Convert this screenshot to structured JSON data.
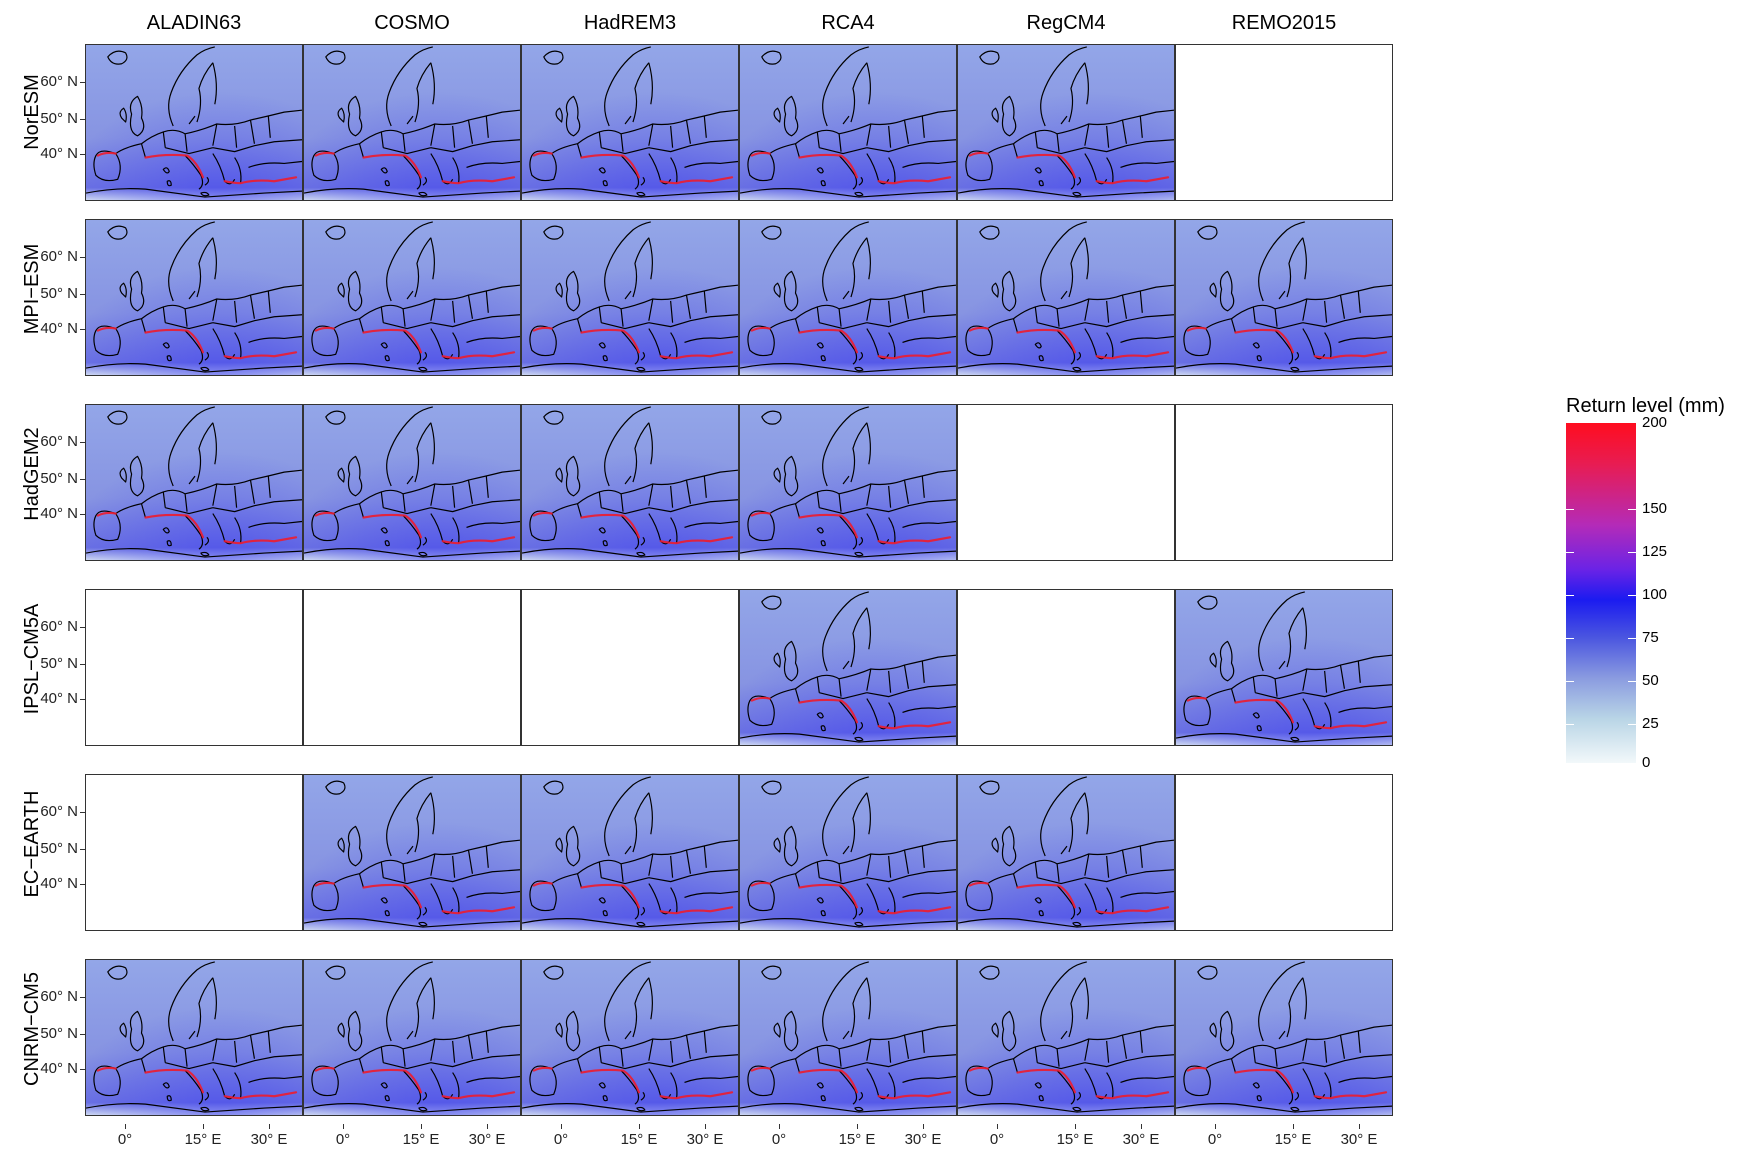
{
  "columns": [
    "ALADIN63",
    "COSMO",
    "HadREM3",
    "RCA4",
    "RegCM4",
    "REMO2015"
  ],
  "rows": [
    "NorESM",
    "MPI−ESM",
    "HadGEM2",
    "IPSL−CM5A",
    "EC−EARTH",
    "CNRM−CM5"
  ],
  "availability": [
    [
      true,
      true,
      true,
      true,
      true,
      false
    ],
    [
      true,
      true,
      true,
      true,
      true,
      true
    ],
    [
      true,
      true,
      true,
      true,
      false,
      false
    ],
    [
      false,
      false,
      false,
      true,
      false,
      true
    ],
    [
      false,
      true,
      true,
      true,
      true,
      false
    ],
    [
      true,
      true,
      true,
      true,
      true,
      true
    ]
  ],
  "y_axis": {
    "labels": [
      "60° N",
      "50° N",
      "40° N"
    ]
  },
  "x_axis": {
    "labels": [
      "0°",
      "15° E",
      "30° E"
    ]
  },
  "legend": {
    "title": "Return level (mm)",
    "ticks": [
      "200",
      "150",
      "125",
      "100",
      "75",
      "50",
      "25",
      "0"
    ],
    "colors": {
      "high": "#ff0d1f",
      "mid": "#1b1bf0",
      "low": "#f2f8fa"
    }
  },
  "map_colors": {
    "background": "#8f9fe6",
    "sea_light": "#b7c3ee",
    "intense": "#ee1c2e",
    "coast": "#000000"
  }
}
